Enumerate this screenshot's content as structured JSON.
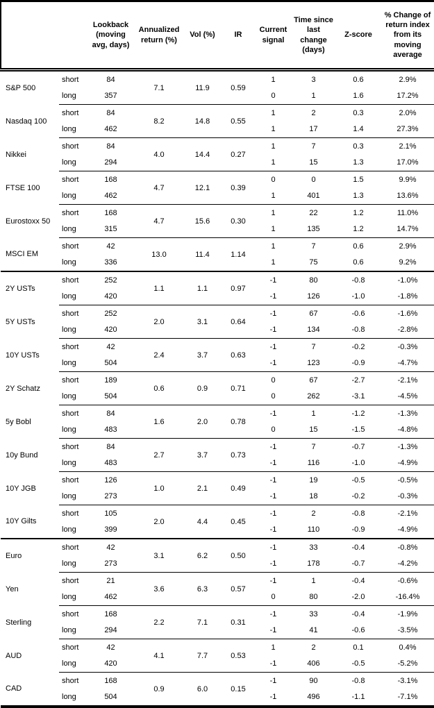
{
  "table": {
    "style": {
      "border_color": "#000000",
      "text_color": "#000000",
      "background": "#ffffff"
    },
    "headers": {
      "asset": "",
      "leg": "",
      "lookback": "Lookback (moving avg, days)",
      "annualized_return": "Annualized return (%)",
      "vol": "Vol (%)",
      "ir": "IR",
      "current_signal": "Current signal",
      "time_since": "Time since last change (days)",
      "z_score": "Z-score",
      "pct_change": "% Change of return index from its moving average"
    },
    "row_labels": {
      "short": "short",
      "long": "long"
    },
    "sections": [
      {
        "assets": [
          {
            "name": "S&P 500",
            "annualized_return": "7.1",
            "vol": "11.9",
            "ir": "0.59",
            "short": {
              "lookback": "84",
              "signal": "1",
              "time_since": "3",
              "z_score": "0.6",
              "pct_change": "2.9%"
            },
            "long": {
              "lookback": "357",
              "signal": "0",
              "time_since": "1",
              "z_score": "1.6",
              "pct_change": "17.2%"
            }
          },
          {
            "name": "Nasdaq 100",
            "annualized_return": "8.2",
            "vol": "14.8",
            "ir": "0.55",
            "short": {
              "lookback": "84",
              "signal": "1",
              "time_since": "2",
              "z_score": "0.3",
              "pct_change": "2.0%"
            },
            "long": {
              "lookback": "462",
              "signal": "1",
              "time_since": "17",
              "z_score": "1.4",
              "pct_change": "27.3%"
            }
          },
          {
            "name": "Nikkei",
            "annualized_return": "4.0",
            "vol": "14.4",
            "ir": "0.27",
            "short": {
              "lookback": "84",
              "signal": "1",
              "time_since": "7",
              "z_score": "0.3",
              "pct_change": "2.1%"
            },
            "long": {
              "lookback": "294",
              "signal": "1",
              "time_since": "15",
              "z_score": "1.3",
              "pct_change": "17.0%"
            }
          },
          {
            "name": "FTSE 100",
            "annualized_return": "4.7",
            "vol": "12.1",
            "ir": "0.39",
            "short": {
              "lookback": "168",
              "signal": "0",
              "time_since": "0",
              "z_score": "1.5",
              "pct_change": "9.9%"
            },
            "long": {
              "lookback": "462",
              "signal": "1",
              "time_since": "401",
              "z_score": "1.3",
              "pct_change": "13.6%"
            }
          },
          {
            "name": "Eurostoxx 50",
            "annualized_return": "4.7",
            "vol": "15.6",
            "ir": "0.30",
            "short": {
              "lookback": "168",
              "signal": "1",
              "time_since": "22",
              "z_score": "1.2",
              "pct_change": "11.0%"
            },
            "long": {
              "lookback": "315",
              "signal": "1",
              "time_since": "135",
              "z_score": "1.2",
              "pct_change": "14.7%"
            }
          },
          {
            "name": "MSCI EM",
            "annualized_return": "13.0",
            "vol": "11.4",
            "ir": "1.14",
            "short": {
              "lookback": "42",
              "signal": "1",
              "time_since": "7",
              "z_score": "0.6",
              "pct_change": "2.9%"
            },
            "long": {
              "lookback": "336",
              "signal": "1",
              "time_since": "75",
              "z_score": "0.6",
              "pct_change": "9.2%"
            }
          }
        ]
      },
      {
        "assets": [
          {
            "name": "2Y USTs",
            "annualized_return": "1.1",
            "vol": "1.1",
            "ir": "0.97",
            "short": {
              "lookback": "252",
              "signal": "-1",
              "time_since": "80",
              "z_score": "-0.8",
              "pct_change": "-1.0%"
            },
            "long": {
              "lookback": "420",
              "signal": "-1",
              "time_since": "126",
              "z_score": "-1.0",
              "pct_change": "-1.8%"
            }
          },
          {
            "name": "5Y USTs",
            "annualized_return": "2.0",
            "vol": "3.1",
            "ir": "0.64",
            "short": {
              "lookback": "252",
              "signal": "-1",
              "time_since": "67",
              "z_score": "-0.6",
              "pct_change": "-1.6%"
            },
            "long": {
              "lookback": "420",
              "signal": "-1",
              "time_since": "134",
              "z_score": "-0.8",
              "pct_change": "-2.8%"
            }
          },
          {
            "name": "10Y USTs",
            "annualized_return": "2.4",
            "vol": "3.7",
            "ir": "0.63",
            "short": {
              "lookback": "42",
              "signal": "-1",
              "time_since": "7",
              "z_score": "-0.2",
              "pct_change": "-0.3%"
            },
            "long": {
              "lookback": "504",
              "signal": "-1",
              "time_since": "123",
              "z_score": "-0.9",
              "pct_change": "-4.7%"
            }
          },
          {
            "name": "2Y Schatz",
            "annualized_return": "0.6",
            "vol": "0.9",
            "ir": "0.71",
            "short": {
              "lookback": "189",
              "signal": "0",
              "time_since": "67",
              "z_score": "-2.7",
              "pct_change": "-2.1%"
            },
            "long": {
              "lookback": "504",
              "signal": "0",
              "time_since": "262",
              "z_score": "-3.1",
              "pct_change": "-4.5%"
            }
          },
          {
            "name": "5y Bobl",
            "annualized_return": "1.6",
            "vol": "2.0",
            "ir": "0.78",
            "short": {
              "lookback": "84",
              "signal": "-1",
              "time_since": "1",
              "z_score": "-1.2",
              "pct_change": "-1.3%"
            },
            "long": {
              "lookback": "483",
              "signal": "0",
              "time_since": "15",
              "z_score": "-1.5",
              "pct_change": "-4.8%"
            }
          },
          {
            "name": "10y Bund",
            "annualized_return": "2.7",
            "vol": "3.7",
            "ir": "0.73",
            "short": {
              "lookback": "84",
              "signal": "-1",
              "time_since": "7",
              "z_score": "-0.7",
              "pct_change": "-1.3%"
            },
            "long": {
              "lookback": "483",
              "signal": "-1",
              "time_since": "116",
              "z_score": "-1.0",
              "pct_change": "-4.9%"
            }
          },
          {
            "name": "10Y JGB",
            "annualized_return": "1.0",
            "vol": "2.1",
            "ir": "0.49",
            "short": {
              "lookback": "126",
              "signal": "-1",
              "time_since": "19",
              "z_score": "-0.5",
              "pct_change": "-0.5%"
            },
            "long": {
              "lookback": "273",
              "signal": "-1",
              "time_since": "18",
              "z_score": "-0.2",
              "pct_change": "-0.3%"
            }
          },
          {
            "name": "10Y Gilts",
            "annualized_return": "2.0",
            "vol": "4.4",
            "ir": "0.45",
            "short": {
              "lookback": "105",
              "signal": "-1",
              "time_since": "2",
              "z_score": "-0.8",
              "pct_change": "-2.1%"
            },
            "long": {
              "lookback": "399",
              "signal": "-1",
              "time_since": "110",
              "z_score": "-0.9",
              "pct_change": "-4.9%"
            }
          }
        ]
      },
      {
        "assets": [
          {
            "name": "Euro",
            "annualized_return": "3.1",
            "vol": "6.2",
            "ir": "0.50",
            "short": {
              "lookback": "42",
              "signal": "-1",
              "time_since": "33",
              "z_score": "-0.4",
              "pct_change": "-0.8%"
            },
            "long": {
              "lookback": "273",
              "signal": "-1",
              "time_since": "178",
              "z_score": "-0.7",
              "pct_change": "-4.2%"
            }
          },
          {
            "name": "Yen",
            "annualized_return": "3.6",
            "vol": "6.3",
            "ir": "0.57",
            "short": {
              "lookback": "21",
              "signal": "-1",
              "time_since": "1",
              "z_score": "-0.4",
              "pct_change": "-0.6%"
            },
            "long": {
              "lookback": "462",
              "signal": "0",
              "time_since": "80",
              "z_score": "-2.0",
              "pct_change": "-16.4%"
            }
          },
          {
            "name": "Sterling",
            "annualized_return": "2.2",
            "vol": "7.1",
            "ir": "0.31",
            "short": {
              "lookback": "168",
              "signal": "-1",
              "time_since": "33",
              "z_score": "-0.4",
              "pct_change": "-1.9%"
            },
            "long": {
              "lookback": "294",
              "signal": "-1",
              "time_since": "41",
              "z_score": "-0.6",
              "pct_change": "-3.5%"
            }
          },
          {
            "name": "AUD",
            "annualized_return": "4.1",
            "vol": "7.7",
            "ir": "0.53",
            "short": {
              "lookback": "42",
              "signal": "1",
              "time_since": "2",
              "z_score": "0.1",
              "pct_change": "0.4%"
            },
            "long": {
              "lookback": "420",
              "signal": "-1",
              "time_since": "406",
              "z_score": "-0.5",
              "pct_change": "-5.2%"
            }
          },
          {
            "name": "CAD",
            "annualized_return": "0.9",
            "vol": "6.0",
            "ir": "0.15",
            "short": {
              "lookback": "168",
              "signal": "-1",
              "time_since": "90",
              "z_score": "-0.8",
              "pct_change": "-3.1%"
            },
            "long": {
              "lookback": "504",
              "signal": "-1",
              "time_since": "496",
              "z_score": "-1.1",
              "pct_change": "-7.1%"
            }
          }
        ]
      }
    ]
  }
}
